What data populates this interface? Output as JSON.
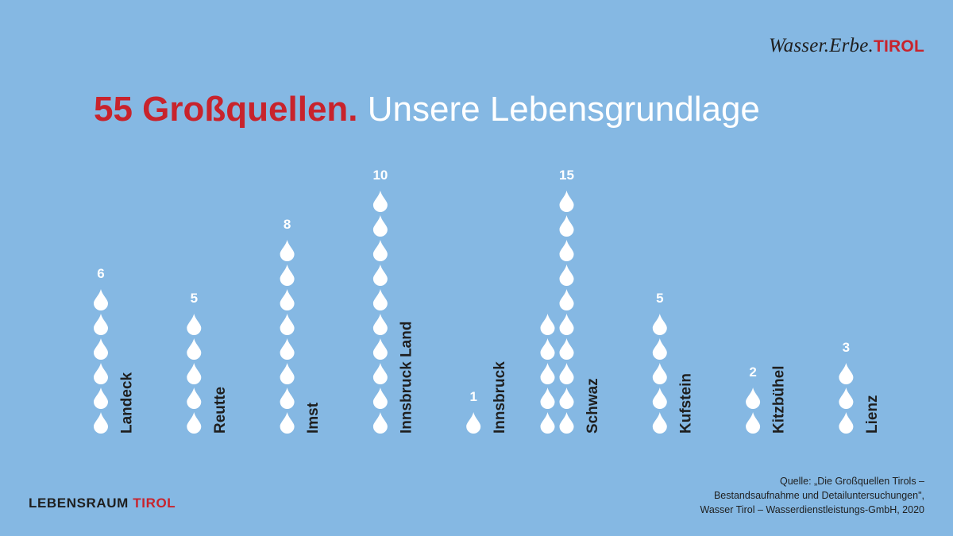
{
  "brand": {
    "prefix": "Wasser.Erbe.",
    "highlight": "TIROL"
  },
  "headline": {
    "red": "55 Großquellen.",
    "white": "Unsere Lebensgrundlage"
  },
  "footer": {
    "brand_prefix": "LEBENSRAUM ",
    "brand_highlight": "TIROL",
    "source_lines": [
      "Quelle: „Die Großquellen Tirols –",
      "Bestandsaufnahme und Detailuntersuchungen\",",
      "Wasser Tirol – Wasserdienstleistungs-GmbH, 2020"
    ]
  },
  "colors": {
    "background": "#85b8e3",
    "accent_red": "#c8232c",
    "drop": "#ffffff",
    "text_dark": "#1f1f1f"
  },
  "chart_data": {
    "type": "bar",
    "mark": "stacked water-drop pictogram (1 drop = 1 spring)",
    "categories": [
      "Landeck",
      "Reutte",
      "Imst",
      "Innsbruck Land",
      "Innsbruck",
      "Schwaz",
      "Kufstein",
      "Kitzbühel",
      "Lienz"
    ],
    "values": [
      6,
      5,
      8,
      10,
      1,
      15,
      5,
      2,
      3
    ],
    "value_labels": [
      "6",
      "5",
      "8",
      "10",
      "1",
      "15",
      "5",
      "2",
      "3"
    ],
    "title": "55 Großquellen. Unsere Lebensgrundlage",
    "xlabel": "",
    "ylabel": "",
    "grid": false,
    "legend": "none"
  }
}
